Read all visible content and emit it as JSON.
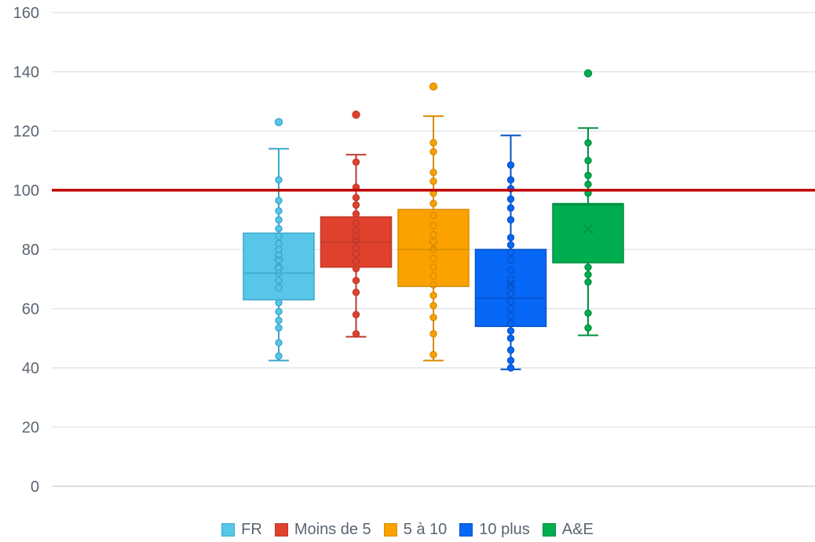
{
  "chart_data": {
    "type": "box",
    "title": "",
    "xlabel": "",
    "ylabel": "",
    "ylim": [
      0,
      160
    ],
    "y_ticks": [
      "0",
      "20",
      "40",
      "60",
      "80",
      "100",
      "120",
      "140",
      "160"
    ],
    "grid": true,
    "legend_position": "bottom-center",
    "reference_line": {
      "y": 100,
      "color": "#c00000"
    },
    "series": [
      {
        "name": "FR",
        "fill": "#57c6e9",
        "stroke": "#3aa8c9",
        "whisker_low": 42.5,
        "q1": 63,
        "median": 72,
        "q3": 85.5,
        "whisker_high": 114,
        "mean": 75,
        "outliers": [
          123
        ],
        "points": [
          44,
          48.5,
          53.5,
          56,
          59,
          62,
          67,
          69.5,
          72,
          74,
          76.5,
          78,
          80,
          82,
          84.5,
          87,
          90,
          93,
          96.5,
          103.5
        ]
      },
      {
        "name": "Moins de 5",
        "fill": "#e0412d",
        "stroke": "#c0392b",
        "whisker_low": 50.5,
        "q1": 74,
        "median": 82.5,
        "q3": 91,
        "whisker_high": 112,
        "mean": 82,
        "outliers": [
          125.5
        ],
        "points": [
          51.5,
          58,
          65.5,
          69.5,
          73.5,
          76,
          78.5,
          80.5,
          83,
          84.5,
          86.5,
          89,
          92,
          95,
          97.5,
          101,
          109.5
        ]
      },
      {
        "name": "5 à 10",
        "fill": "#fba200",
        "stroke": "#d98c00",
        "whisker_low": 42.5,
        "q1": 67.5,
        "median": 80,
        "q3": 93.5,
        "whisker_high": 125,
        "mean": 81,
        "outliers": [
          135
        ],
        "points": [
          44.5,
          51.5,
          57,
          61,
          64.5,
          68,
          71,
          74,
          77,
          80,
          82.5,
          85,
          88,
          91.5,
          95.5,
          99,
          103,
          106,
          113,
          116
        ]
      },
      {
        "name": "10 plus",
        "fill": "#0767f7",
        "stroke": "#0552c7",
        "whisker_low": 39.5,
        "q1": 54,
        "median": 63.5,
        "q3": 80,
        "whisker_high": 118.5,
        "mean": 68,
        "outliers": [],
        "points": [
          40,
          42.5,
          46,
          50,
          52.5,
          55,
          57.5,
          60,
          62.5,
          65,
          67.5,
          70,
          73,
          76.5,
          79,
          81.5,
          84,
          90,
          94,
          97,
          100.5,
          103.5,
          108.5
        ]
      },
      {
        "name": "A&E",
        "fill": "#00ad4f",
        "stroke": "#008f40",
        "whisker_low": 51,
        "q1": 75.5,
        "median": 95,
        "q3": 95.5,
        "whisker_high": 121,
        "mean": 87,
        "outliers": [
          139.5
        ],
        "points": [
          53.5,
          58.5,
          69,
          71.5,
          74,
          99,
          102,
          105,
          110,
          116
        ]
      }
    ]
  }
}
